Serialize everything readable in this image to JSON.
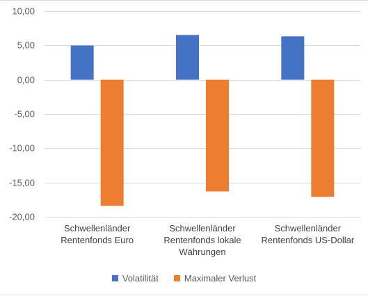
{
  "chart_data": {
    "type": "bar",
    "categories": [
      [
        "Schwellenländer",
        "Rentenfonds Euro"
      ],
      [
        "Schwellenländer",
        "Rentenfonds lokale",
        "Währungen"
      ],
      [
        "Schwellenländer",
        "Rentenfonds US-Dollar"
      ]
    ],
    "series": [
      {
        "name": "Volatilität",
        "values": [
          4.98,
          6.52,
          6.32
        ],
        "color": "#4472c4"
      },
      {
        "name": "Maximaler Verlust",
        "values": [
          -18.4,
          -16.3,
          -17.1
        ],
        "color": "#ed7d31"
      }
    ],
    "yticks": [
      "10,00",
      "5,00",
      "0,00",
      "-5,00",
      "-10,00",
      "-15,00",
      "-20,00"
    ],
    "ylim": [
      -20,
      10
    ],
    "grid": true,
    "legend_position": "bottom"
  }
}
